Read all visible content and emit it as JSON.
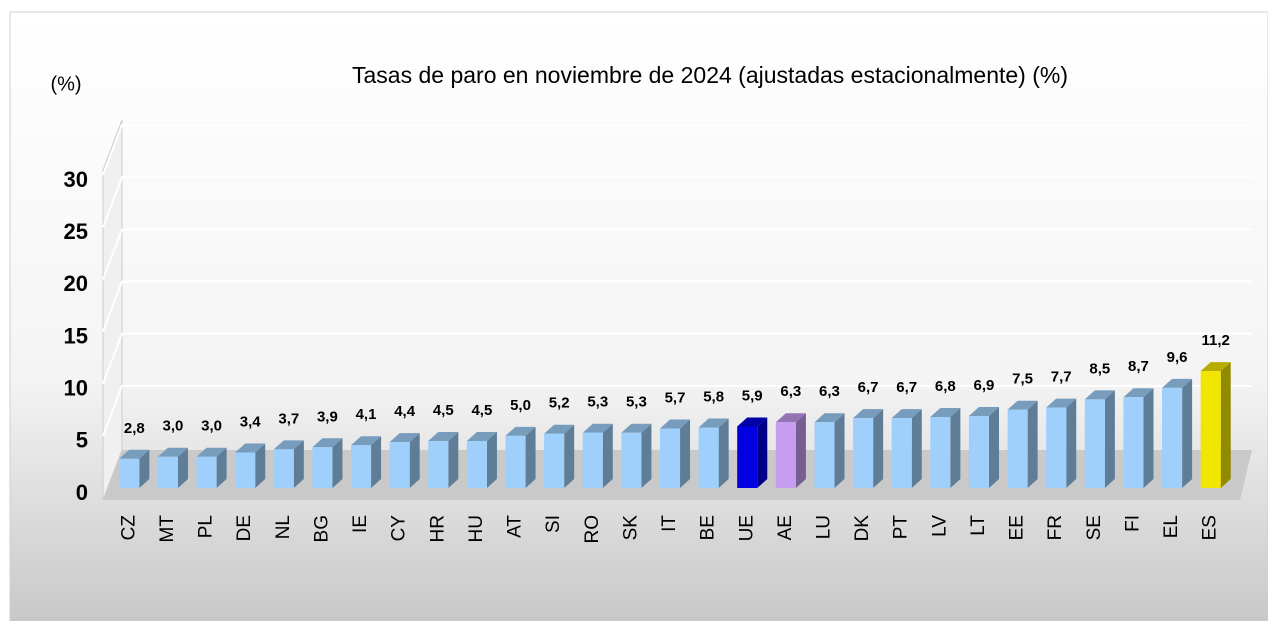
{
  "chart_data": {
    "type": "bar3d",
    "title": "Tasas de paro en noviembre de 2024  (ajustadas estacionalmente) (%)",
    "y_label": "(%)",
    "categories": [
      "CZ",
      "MT",
      "PL",
      "DE",
      "NL",
      "BG",
      "IE",
      "CY",
      "HR",
      "HU",
      "AT",
      "SI",
      "RO",
      "SK",
      "IT",
      "BE",
      "UE",
      "AE",
      "LU",
      "DK",
      "PT",
      "LV",
      "LT",
      "EE",
      "FR",
      "SE",
      "FI",
      "EL",
      "ES"
    ],
    "values": [
      2.8,
      3.0,
      3.0,
      3.4,
      3.7,
      3.9,
      4.1,
      4.4,
      4.5,
      4.5,
      5.0,
      5.2,
      5.3,
      5.3,
      5.7,
      5.8,
      5.9,
      6.3,
      6.3,
      6.7,
      6.7,
      6.8,
      6.9,
      7.5,
      7.7,
      8.5,
      8.7,
      9.6,
      11.2
    ],
    "value_labels": [
      "2,8",
      "3,0",
      "3,0",
      "3,4",
      "3,7",
      "3,9",
      "4,1",
      "4,4",
      "4,5",
      "4,5",
      "5,0",
      "5,2",
      "5,3",
      "5,3",
      "5,7",
      "5,8",
      "5,9",
      "6,3",
      "6,3",
      "6,7",
      "6,7",
      "6,8",
      "6,9",
      "7,5",
      "7,7",
      "8,5",
      "8,7",
      "9,6",
      "11,2"
    ],
    "colors": [
      "#9fd0fb",
      "#9fd0fb",
      "#9fd0fb",
      "#9fd0fb",
      "#9fd0fb",
      "#9fd0fb",
      "#9fd0fb",
      "#9fd0fb",
      "#9fd0fb",
      "#9fd0fb",
      "#9fd0fb",
      "#9fd0fb",
      "#9fd0fb",
      "#9fd0fb",
      "#9fd0fb",
      "#9fd0fb",
      "#0000e0",
      "#c59cf0",
      "#9fd0fb",
      "#9fd0fb",
      "#9fd0fb",
      "#9fd0fb",
      "#9fd0fb",
      "#9fd0fb",
      "#9fd0fb",
      "#9fd0fb",
      "#9fd0fb",
      "#9fd0fb",
      "#f2e600"
    ],
    "ylim": [
      0,
      30
    ],
    "yticks": [
      0,
      5,
      10,
      15,
      20,
      25,
      30
    ],
    "grid": true
  }
}
